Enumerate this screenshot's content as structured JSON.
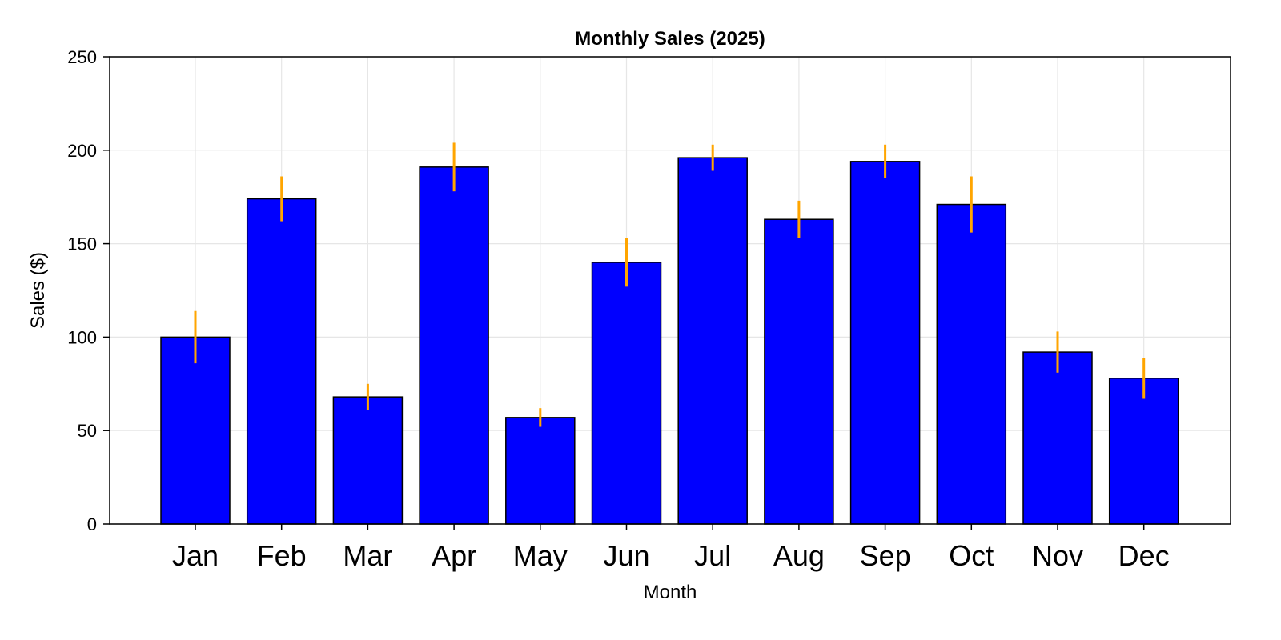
{
  "chart_data": {
    "type": "bar",
    "title": "Monthly Sales (2025)",
    "xlabel": "Month",
    "ylabel": "Sales ($)",
    "ylim": [
      0,
      250
    ],
    "yticks": [
      0,
      50,
      100,
      150,
      200,
      250
    ],
    "grid": true,
    "categories": [
      "Jan",
      "Feb",
      "Mar",
      "Apr",
      "May",
      "Jun",
      "Jul",
      "Aug",
      "Sep",
      "Oct",
      "Nov",
      "Dec"
    ],
    "values": [
      100,
      174,
      68,
      191,
      57,
      140,
      196,
      163,
      194,
      171,
      92,
      78
    ],
    "errors": [
      14,
      12,
      7,
      13,
      5,
      13,
      7,
      10,
      9,
      15,
      11,
      11
    ],
    "bar_color": "#0000ff",
    "bar_edge_color": "#000000",
    "error_color": "#ffa500"
  }
}
